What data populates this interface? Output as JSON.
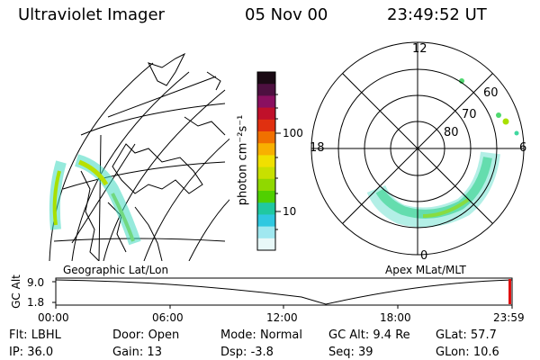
{
  "header": {
    "instrument": "Ultraviolet Imager",
    "date": "05 Nov 00",
    "time": "23:49:52 UT"
  },
  "colorbar": {
    "unit_label": "photon cm⁻²s⁻¹",
    "ticks": [
      "100",
      "10"
    ],
    "colors": [
      "#1a0a14",
      "#4d1040",
      "#8a1060",
      "#c0102a",
      "#e03010",
      "#f07000",
      "#f8b000",
      "#f0e000",
      "#c8e000",
      "#90d800",
      "#50d000",
      "#20c8a0",
      "#30c8e0",
      "#a0e8f0",
      "#e8f8f8"
    ]
  },
  "left_map": {
    "caption": "Geographic Lat/Lon"
  },
  "right_map": {
    "caption": "Apex MLat/MLT",
    "mlt_labels": {
      "top": "12",
      "left": "18",
      "right": "6",
      "bottom": "0"
    },
    "lat_labels": [
      "60",
      "70",
      "80"
    ]
  },
  "timeline": {
    "axis_label": "GC Alt",
    "y_ticks": [
      "9.0",
      "1.8"
    ],
    "x_ticks": [
      "00:00",
      "06:00",
      "12:00",
      "18:00",
      "23:59"
    ]
  },
  "status": [
    [
      {
        "k": "Flt:",
        "v": "LBHL"
      },
      {
        "k": "Door:",
        "v": "Open"
      },
      {
        "k": "Mode:",
        "v": "Normal"
      },
      {
        "k": "GC Alt:",
        "v": "9.4 Re"
      },
      {
        "k": "GLat:",
        "v": "57.7"
      }
    ],
    [
      {
        "k": "IP:",
        "v": "36.0"
      },
      {
        "k": "Gain:",
        "v": "13"
      },
      {
        "k": "Dsp:",
        "v": "-3.8"
      },
      {
        "k": "Seq:",
        "v": "39"
      },
      {
        "k": "GLon:",
        "v": "10.6"
      }
    ]
  ]
}
